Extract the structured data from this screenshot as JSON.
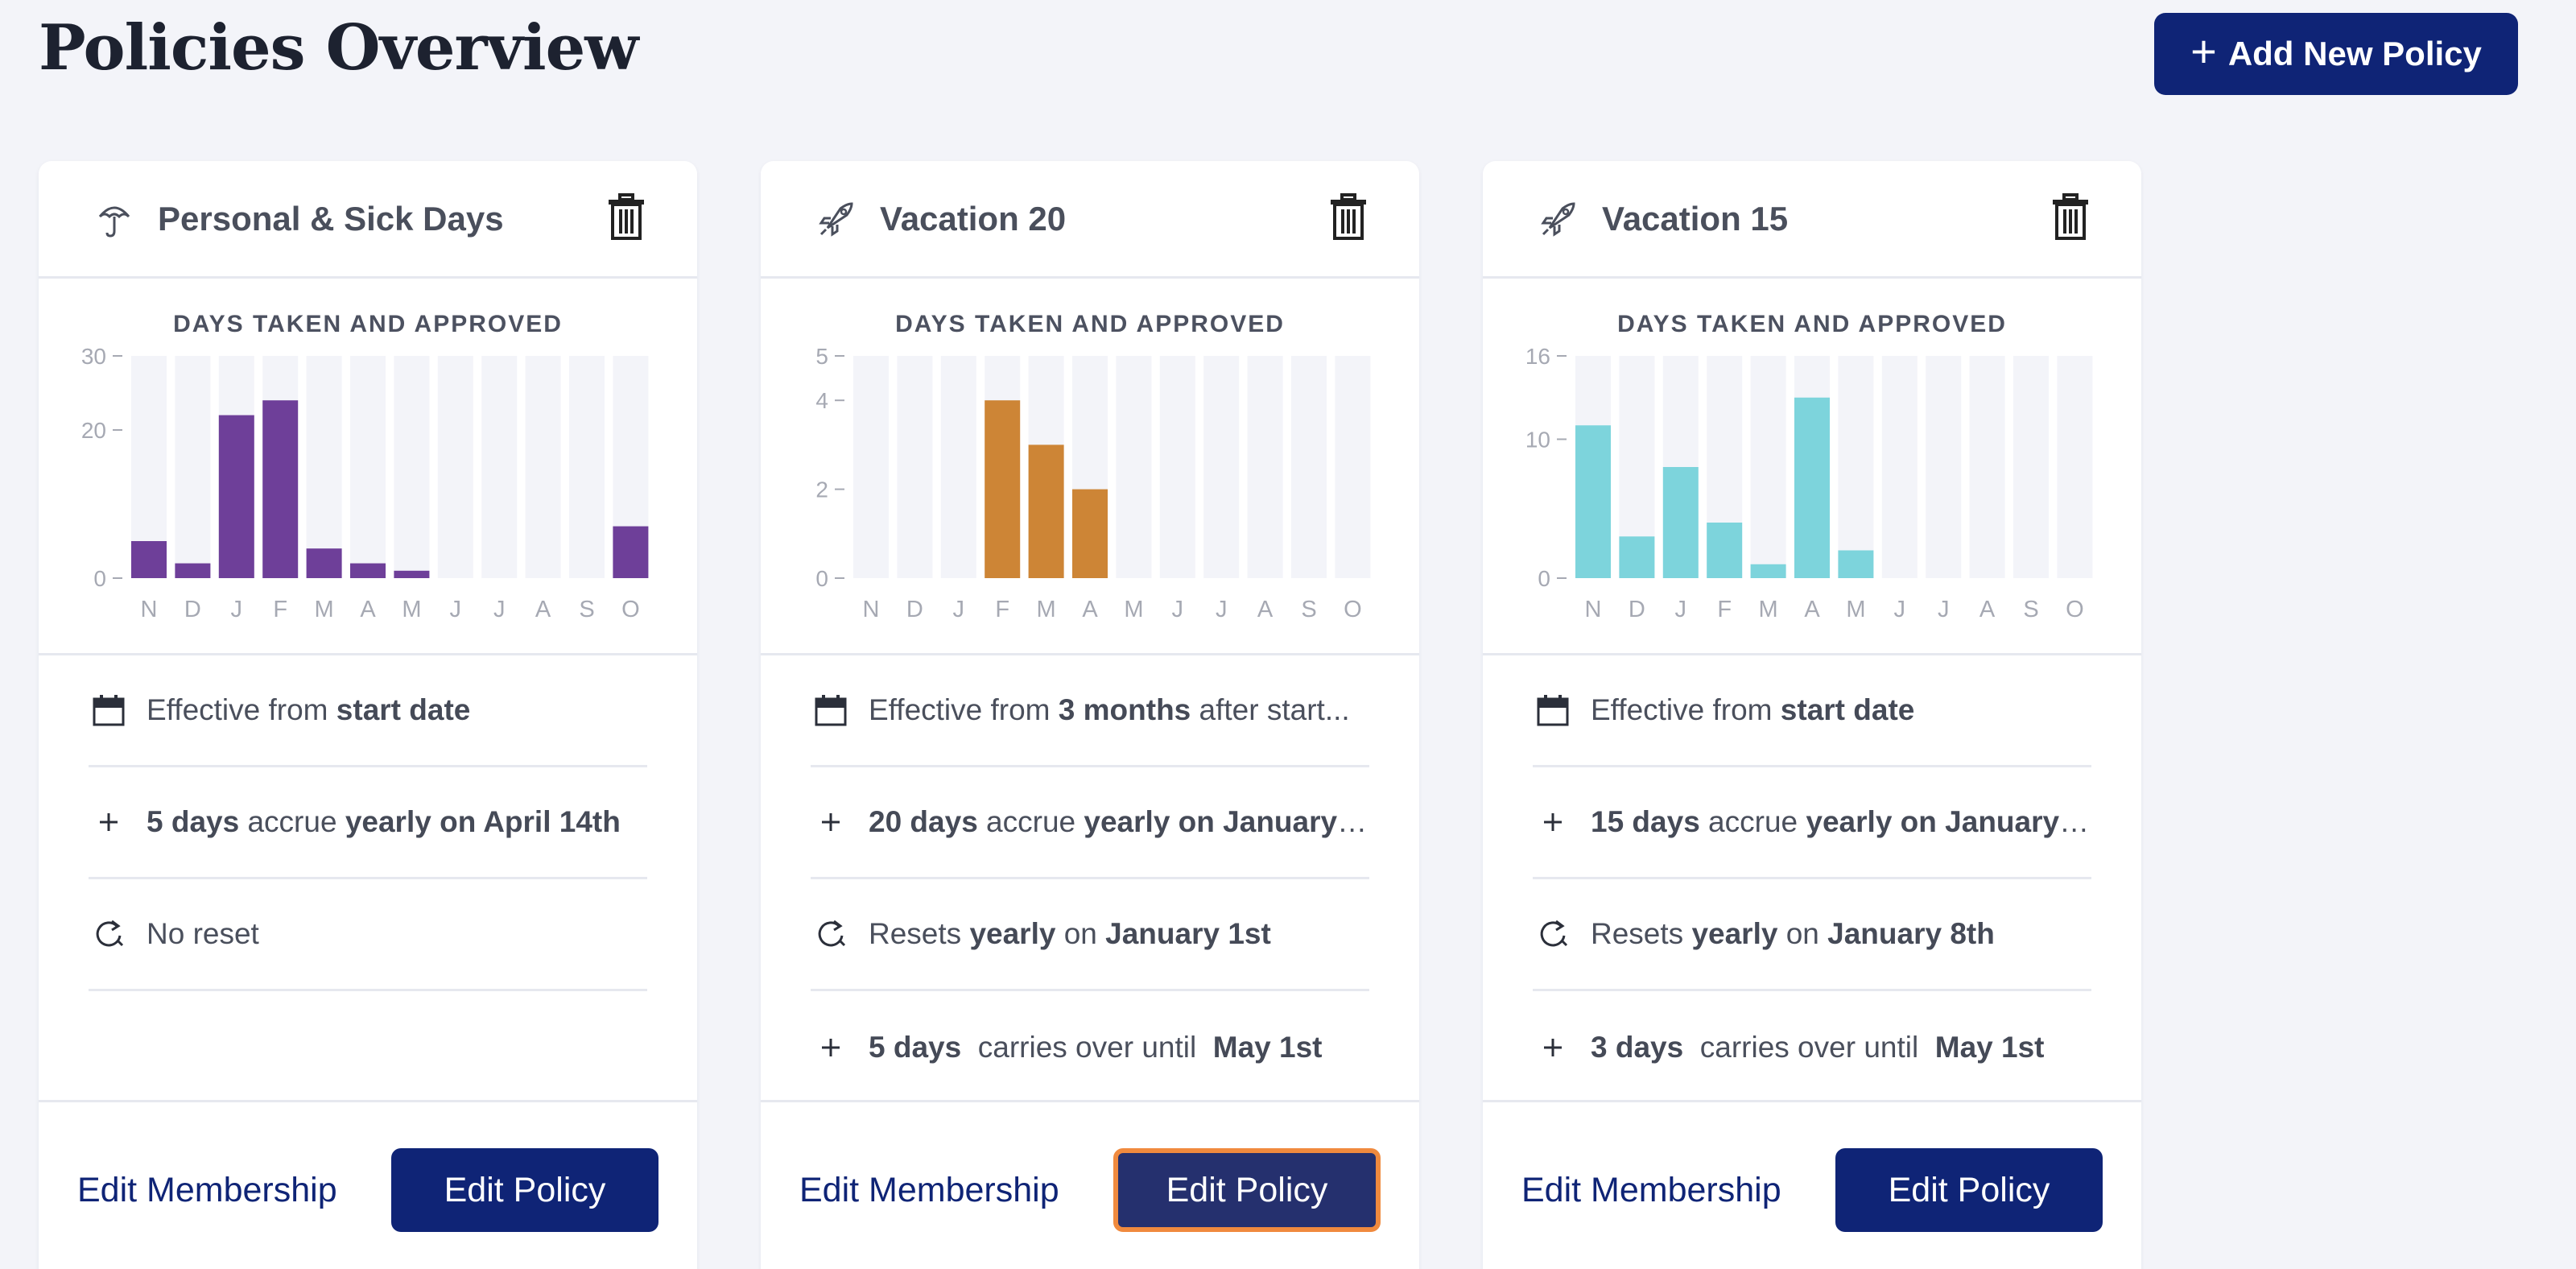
{
  "header": {
    "title": "Policies Overview",
    "add_button_label": "Add New Policy"
  },
  "chart_title": "DAYS TAKEN AND APPROVED",
  "months": [
    "N",
    "D",
    "J",
    "F",
    "M",
    "A",
    "M",
    "J",
    "J",
    "A",
    "S",
    "O"
  ],
  "footer": {
    "edit_membership_label": "Edit Membership",
    "edit_policy_label": "Edit Policy"
  },
  "cards": [
    {
      "title": "Personal & Sick Days",
      "icon": "umbrella-icon",
      "color": "#6e3f99",
      "chart_data": {
        "type": "bar",
        "title": "DAYS TAKEN AND APPROVED",
        "categories": [
          "N",
          "D",
          "J",
          "F",
          "M",
          "A",
          "M",
          "J",
          "J",
          "A",
          "S",
          "O"
        ],
        "values": [
          5,
          2,
          22,
          24,
          4,
          2,
          1,
          0,
          0,
          0,
          0,
          7
        ],
        "ylim": [
          0,
          30
        ],
        "yticks": [
          0,
          20,
          30
        ]
      },
      "rows": [
        {
          "icon": "calendar-icon",
          "parts": [
            [
              "Effective from ",
              false
            ],
            [
              "start date",
              true
            ]
          ]
        },
        {
          "icon": "plus-icon",
          "parts": [
            [
              "5 days",
              true
            ],
            [
              " accrue ",
              false
            ],
            [
              "yearly on April 14th",
              true
            ]
          ]
        },
        {
          "icon": "reset-icon",
          "parts": [
            [
              "No reset",
              false
            ]
          ]
        }
      ]
    },
    {
      "title": "Vacation 20",
      "icon": "rocket-icon",
      "color": "#cd8536",
      "chart_data": {
        "type": "bar",
        "title": "DAYS TAKEN AND APPROVED",
        "categories": [
          "N",
          "D",
          "J",
          "F",
          "M",
          "A",
          "M",
          "J",
          "J",
          "A",
          "S",
          "O"
        ],
        "values": [
          0,
          0,
          0,
          4,
          3,
          2,
          0,
          0,
          0,
          0,
          0,
          0
        ],
        "ylim": [
          0,
          5
        ],
        "yticks": [
          0,
          2,
          4,
          5
        ]
      },
      "rows": [
        {
          "icon": "calendar-icon",
          "parts": [
            [
              "Effective from ",
              false
            ],
            [
              "3 months",
              true
            ],
            [
              " after start...",
              false
            ]
          ]
        },
        {
          "icon": "plus-icon",
          "parts": [
            [
              "20 days",
              true
            ],
            [
              " accrue ",
              false
            ],
            [
              "yearly on January ...",
              true
            ]
          ]
        },
        {
          "icon": "reset-icon",
          "parts": [
            [
              "Resets ",
              false
            ],
            [
              "yearly",
              true
            ],
            [
              " on ",
              false
            ],
            [
              "January 1st",
              true
            ]
          ]
        },
        {
          "icon": "plus-icon",
          "parts": [
            [
              "5 days",
              true
            ],
            [
              "  carries over until  ",
              false
            ],
            [
              "May 1st",
              true
            ]
          ]
        }
      ]
    },
    {
      "title": "Vacation 15",
      "icon": "rocket-icon",
      "color": "#7dd4dc",
      "chart_data": {
        "type": "bar",
        "title": "DAYS TAKEN AND APPROVED",
        "categories": [
          "N",
          "D",
          "J",
          "F",
          "M",
          "A",
          "M",
          "J",
          "J",
          "A",
          "S",
          "O"
        ],
        "values": [
          11,
          3,
          8,
          4,
          1,
          13,
          2,
          0,
          0,
          0,
          0,
          0
        ],
        "ylim": [
          0,
          16
        ],
        "yticks": [
          0,
          10,
          16
        ]
      },
      "rows": [
        {
          "icon": "calendar-icon",
          "parts": [
            [
              "Effective from ",
              false
            ],
            [
              "start date",
              true
            ]
          ]
        },
        {
          "icon": "plus-icon",
          "parts": [
            [
              "15 days",
              true
            ],
            [
              " accrue ",
              false
            ],
            [
              "yearly on January ...",
              true
            ]
          ]
        },
        {
          "icon": "reset-icon",
          "parts": [
            [
              "Resets ",
              false
            ],
            [
              "yearly",
              true
            ],
            [
              " on ",
              false
            ],
            [
              "January 8th",
              true
            ]
          ]
        },
        {
          "icon": "plus-icon",
          "parts": [
            [
              "3 days",
              true
            ],
            [
              "  carries over until  ",
              false
            ],
            [
              "May 1st",
              true
            ]
          ]
        }
      ]
    }
  ]
}
